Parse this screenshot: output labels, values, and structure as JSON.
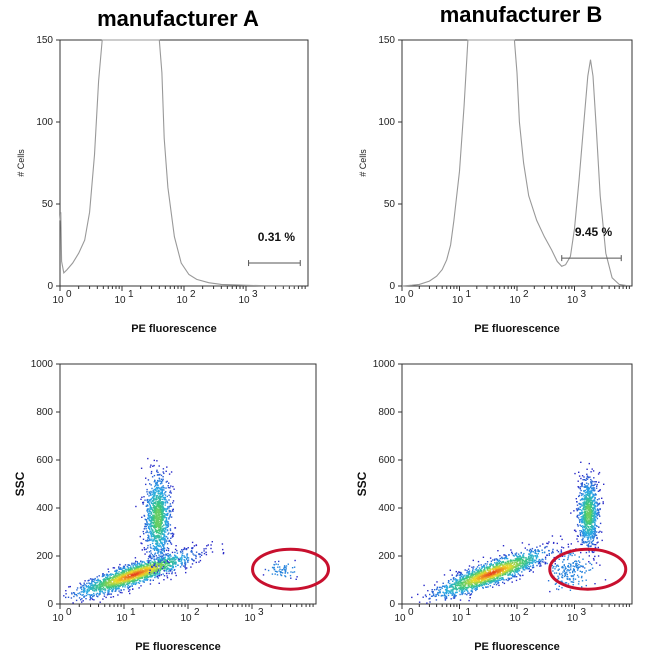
{
  "panels": {
    "titles": [
      "manufacturer A",
      "manufacturer B"
    ]
  },
  "chart_data": [
    {
      "id": "histA",
      "type": "line",
      "panel": "manufacturer A",
      "title": "manufacturer A",
      "xlabel": "PE fluorescence",
      "ylabel": "# Cells",
      "xscale": "log",
      "xlim": [
        1,
        10000
      ],
      "ylim": [
        0,
        150
      ],
      "xticks": [
        1,
        10,
        100,
        1000
      ],
      "xtick_labels": [
        [
          "10",
          "0"
        ],
        [
          "10",
          "1"
        ],
        [
          "10",
          "2"
        ],
        [
          "10",
          "3"
        ]
      ],
      "yticks": [
        0,
        50,
        100,
        150
      ],
      "x": [
        1.0,
        1.03,
        1.06,
        1.15,
        1.3,
        1.6,
        2.0,
        2.5,
        3.0,
        3.6,
        4.2,
        4.8,
        5.2,
        40,
        44,
        48,
        55,
        70,
        90,
        120,
        160,
        250,
        400,
        700,
        1000,
        2000,
        5000,
        7000
      ],
      "y": [
        40,
        45,
        15,
        8,
        10,
        14,
        20,
        28,
        45,
        80,
        125,
        150,
        150,
        150,
        130,
        90,
        60,
        30,
        14,
        7,
        4,
        2,
        1,
        0.7,
        0.4,
        0.2,
        0.2,
        0.2
      ],
      "gate": {
        "label": "0.31 %",
        "x_range": [
          1100,
          7500
        ]
      },
      "series": [
        {
          "values_ref": "x/y"
        }
      ]
    },
    {
      "id": "histB",
      "type": "line",
      "panel": "manufacturer B",
      "title": "manufacturer B",
      "xlabel": "PE fluorescence",
      "ylabel": "# Cells",
      "xscale": "log",
      "xlim": [
        1,
        10000
      ],
      "ylim": [
        0,
        150
      ],
      "xticks": [
        1,
        10,
        100,
        1000
      ],
      "xtick_labels": [
        [
          "10",
          "0"
        ],
        [
          "10",
          "1"
        ],
        [
          "10",
          "2"
        ],
        [
          "10",
          "3"
        ]
      ],
      "yticks": [
        0,
        50,
        100,
        150
      ],
      "x": [
        1,
        1.5,
        2,
        3,
        4,
        5,
        6,
        7,
        8,
        10,
        12,
        14,
        22,
        90,
        100,
        110,
        130,
        160,
        220,
        300,
        400,
        500,
        600,
        700,
        850,
        1000,
        1200,
        1500,
        1700,
        1900,
        2100,
        2400,
        2800,
        3500,
        4500,
        6000,
        8000
      ],
      "y": [
        0,
        0.5,
        1,
        3,
        6,
        10,
        16,
        25,
        40,
        70,
        110,
        150,
        150,
        150,
        130,
        100,
        75,
        55,
        40,
        30,
        22,
        15,
        12,
        13,
        18,
        35,
        65,
        105,
        128,
        138,
        128,
        95,
        55,
        20,
        5,
        1,
        0.3
      ],
      "gate": {
        "label": "9.45 %",
        "x_range": [
          600,
          6500
        ]
      }
    },
    {
      "id": "dotA",
      "type": "scatter",
      "panel": "manufacturer A",
      "xlabel": "PE fluorescence",
      "ylabel": "SSC",
      "xscale": "log",
      "xlim": [
        1,
        10000
      ],
      "ylim": [
        0,
        1000
      ],
      "xticks": [
        1,
        10,
        100,
        1000
      ],
      "xtick_labels": [
        [
          "10",
          "0"
        ],
        [
          "10",
          "1"
        ],
        [
          "10",
          "2"
        ],
        [
          "10",
          "3"
        ]
      ],
      "yticks": [
        0,
        200,
        400,
        600,
        800,
        1000
      ],
      "clusters": [
        {
          "center": [
            14,
            125
          ],
          "log_sd_x": 0.28,
          "sd_y": 28,
          "n": 1800,
          "shape": "diagonal"
        },
        {
          "center": [
            33,
            360
          ],
          "log_sd_x": 0.1,
          "sd_y": 90,
          "n": 1100
        },
        {
          "center": [
            3000,
            145
          ],
          "log_sd_x": 0.12,
          "sd_y": 15,
          "n": 60
        }
      ],
      "circle": {
        "center": [
          4000,
          145
        ],
        "label": ""
      }
    },
    {
      "id": "dotB",
      "type": "scatter",
      "panel": "manufacturer B",
      "xlabel": "PE fluorescence",
      "ylabel": "SSC",
      "xscale": "log",
      "xlim": [
        1,
        10000
      ],
      "ylim": [
        0,
        1000
      ],
      "xticks": [
        1,
        10,
        100,
        1000
      ],
      "xtick_labels": [
        [
          "10",
          "0"
        ],
        [
          "10",
          "1"
        ],
        [
          "10",
          "2"
        ],
        [
          "10",
          "3"
        ]
      ],
      "yticks": [
        0,
        200,
        400,
        600,
        800,
        1000
      ],
      "clusters": [
        {
          "center": [
            35,
            130
          ],
          "log_sd_x": 0.3,
          "sd_y": 30,
          "n": 1700,
          "shape": "diagonal"
        },
        {
          "center": [
            1700,
            380
          ],
          "log_sd_x": 0.09,
          "sd_y": 70,
          "n": 900
        },
        {
          "center": [
            800,
            140
          ],
          "log_sd_x": 0.2,
          "sd_y": 40,
          "n": 200
        }
      ],
      "circle": {
        "center": [
          1700,
          145
        ],
        "label": ""
      }
    }
  ]
}
